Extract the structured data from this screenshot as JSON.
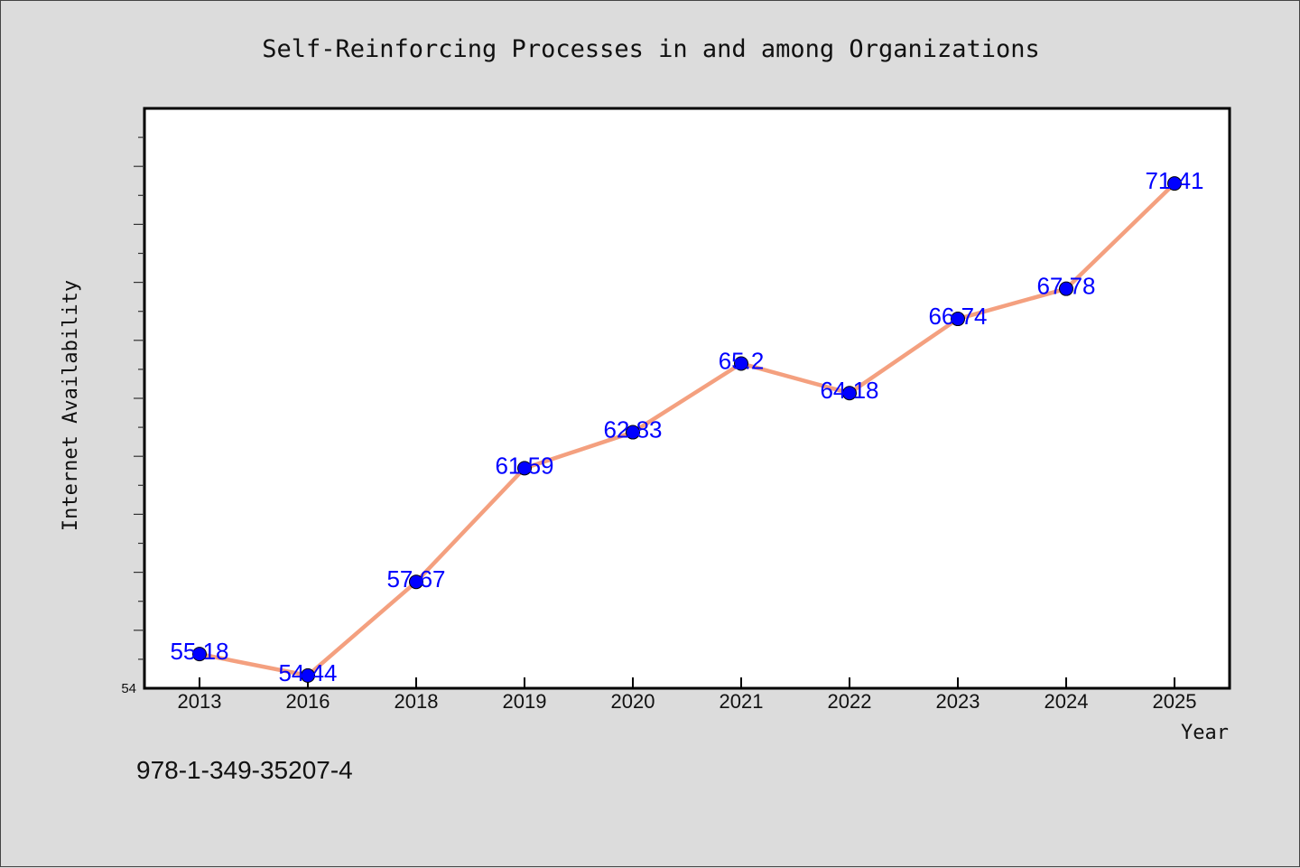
{
  "chart_data": {
    "type": "line",
    "title": "Self-Reinforcing Processes in and among Organizations",
    "xlabel": "Year",
    "ylabel": "Internet Availability",
    "categories": [
      "2013",
      "2016",
      "2018",
      "2019",
      "2020",
      "2021",
      "2022",
      "2023",
      "2024",
      "2025"
    ],
    "series": [
      {
        "values": [
          55.18,
          54.44,
          57.67,
          61.59,
          62.83,
          65.2,
          64.18,
          66.74,
          67.78,
          71.41
        ],
        "labels": [
          "55.18",
          "54.44",
          "57.67",
          "61.59",
          "62.83",
          "65.2",
          "64.18",
          "66.74",
          "67.78",
          "71.41"
        ],
        "line_color": "#f4a07f",
        "marker_color": "#0000ff"
      }
    ],
    "ylim": [
      54,
      74
    ],
    "y_tick_labels": [
      "54"
    ],
    "grid": false,
    "legend": "none"
  },
  "footer": {
    "isbn": "978-1-349-35207-4"
  },
  "colors": {
    "background": "#dcdcdc",
    "plot_background": "#ffffff",
    "label_color": "#0000ff"
  }
}
